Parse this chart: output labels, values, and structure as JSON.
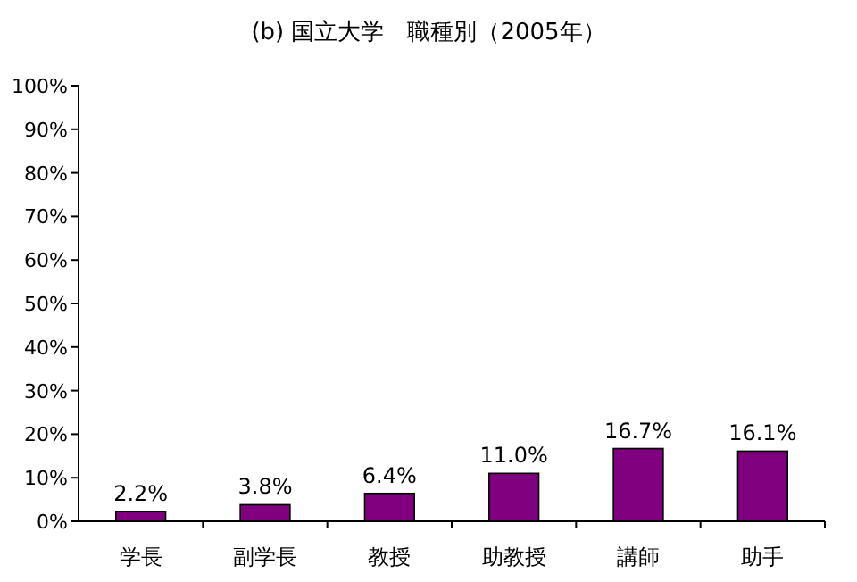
{
  "chart_data": {
    "type": "bar",
    "title": "(b) 国立大学　職種別（2005年）",
    "categories": [
      "学長",
      "副学長",
      "教授",
      "助教授",
      "講師",
      "助手"
    ],
    "values": [
      2.2,
      3.8,
      6.4,
      11.0,
      16.7,
      16.1
    ],
    "value_labels": [
      "2.2%",
      "3.8%",
      "6.4%",
      "11.0%",
      "16.7%",
      "16.1%"
    ],
    "color": "#800080",
    "ylim": [
      0,
      100
    ],
    "yticks": [
      {
        "value": 0,
        "label": "0%"
      },
      {
        "value": 10,
        "label": "10%"
      },
      {
        "value": 20,
        "label": "20%"
      },
      {
        "value": 30,
        "label": "30%"
      },
      {
        "value": 40,
        "label": "40%"
      },
      {
        "value": 50,
        "label": "50%"
      },
      {
        "value": 60,
        "label": "60%"
      },
      {
        "value": 70,
        "label": "70%"
      },
      {
        "value": 80,
        "label": "80%"
      },
      {
        "value": 90,
        "label": "90%"
      },
      {
        "value": 100,
        "label": "100%"
      }
    ],
    "data_labels": true
  }
}
